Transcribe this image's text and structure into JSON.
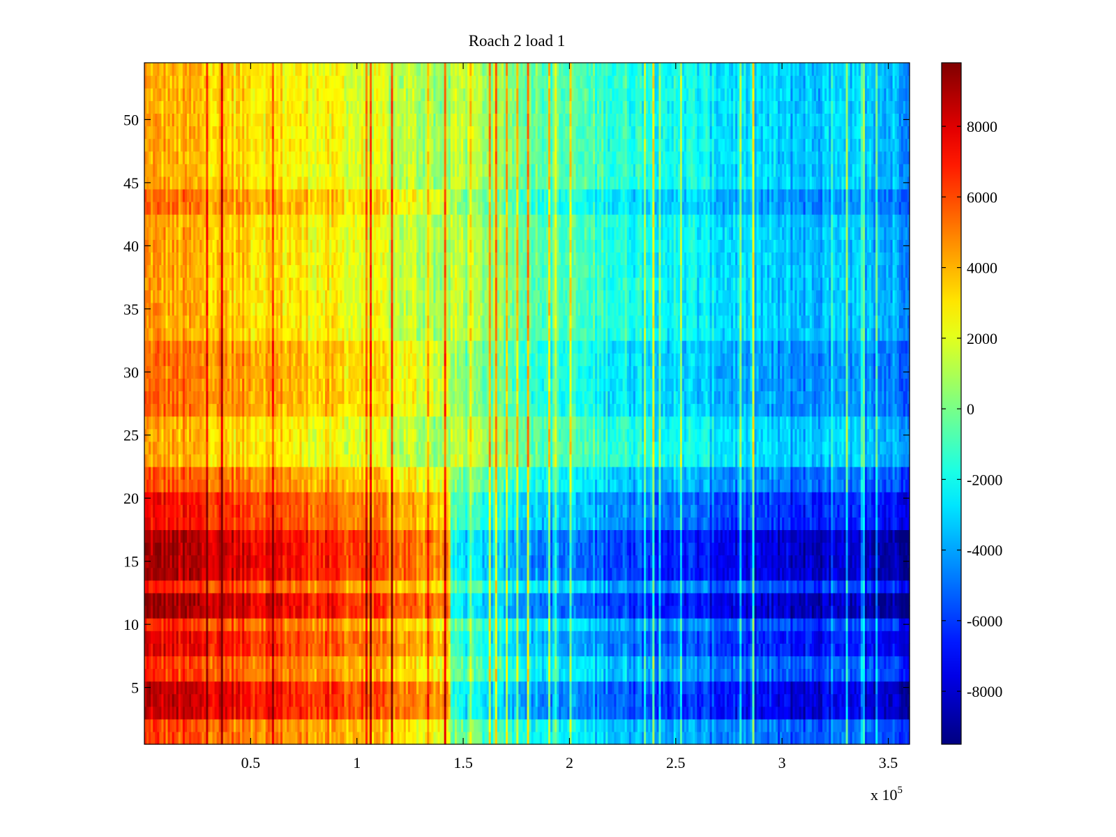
{
  "chart_data": {
    "type": "heatmap",
    "title": "Roach 2 load 1",
    "xlabel": "",
    "ylabel": "",
    "x_multiplier_label": "x 10",
    "x_multiplier_exponent": "5",
    "xlim": [
      0,
      3.6
    ],
    "ylim": [
      0.5,
      54.5
    ],
    "x_ticks": [
      0.5,
      1,
      1.5,
      2,
      2.5,
      3,
      3.5
    ],
    "x_tick_labels": [
      "0.5",
      "1",
      "1.5",
      "2",
      "2.5",
      "3",
      "3.5"
    ],
    "y_ticks": [
      5,
      10,
      15,
      20,
      25,
      30,
      35,
      40,
      45,
      50
    ],
    "y_tick_labels": [
      "5",
      "10",
      "15",
      "20",
      "25",
      "30",
      "35",
      "40",
      "45",
      "50"
    ],
    "colorbar": {
      "colormap": "jet",
      "range": [
        -9500,
        9800
      ],
      "ticks": [
        -8000,
        -6000,
        -4000,
        -2000,
        0,
        2000,
        4000,
        6000,
        8000
      ],
      "tick_labels": [
        "-8000",
        "-6000",
        "-4000",
        "-2000",
        "0",
        "2000",
        "4000",
        "6000",
        "8000"
      ]
    },
    "rows": 54,
    "columns": 360,
    "grid": false,
    "legend": "none",
    "trend_description_values": {
      "x_anchor": [
        0,
        0.6,
        1.0,
        1.4,
        2.0,
        2.6,
        3.0,
        3.6
      ],
      "value_at_anchor": [
        4800,
        3600,
        2600,
        1200,
        -1300,
        -2800,
        -3800,
        -4200
      ]
    },
    "row_offsets": [
      {
        "rows": [
          1,
          2
        ],
        "offset": 1200
      },
      {
        "rows": [
          3,
          5
        ],
        "offset": 3200
      },
      {
        "rows": [
          6,
          7
        ],
        "offset": 1400
      },
      {
        "rows": [
          8,
          9
        ],
        "offset": 2600
      },
      {
        "rows": [
          10,
          10
        ],
        "offset": 1600
      },
      {
        "rows": [
          11,
          12
        ],
        "offset": 3800
      },
      {
        "rows": [
          13,
          13
        ],
        "offset": 1800
      },
      {
        "rows": [
          14,
          17
        ],
        "offset": 3600
      },
      {
        "rows": [
          18,
          20
        ],
        "offset": 2200
      },
      {
        "rows": [
          21,
          22
        ],
        "offset": 1000
      },
      {
        "rows": [
          23,
          26
        ],
        "offset": -600
      },
      {
        "rows": [
          27,
          32
        ],
        "offset": 600
      },
      {
        "rows": [
          33,
          42
        ],
        "offset": -400
      },
      {
        "rows": [
          43,
          44
        ],
        "offset": 600
      },
      {
        "rows": [
          45,
          54
        ],
        "offset": -600
      }
    ],
    "colors": {
      "background": "#ffffff",
      "axis": "#000000"
    }
  }
}
